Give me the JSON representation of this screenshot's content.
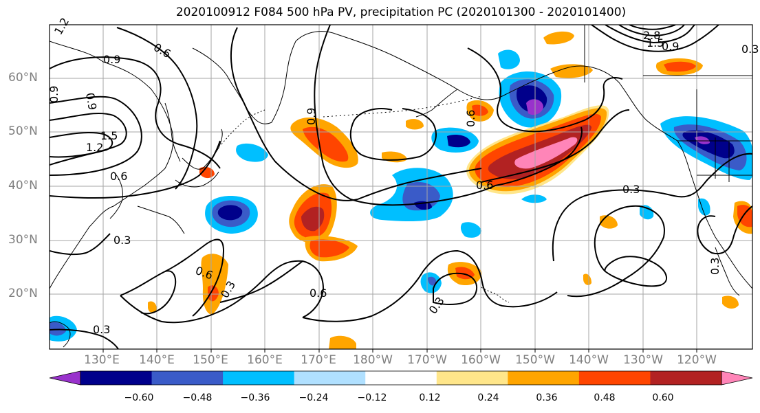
{
  "title": "2020100912 F084 500 hPa PV, precipitation PC (2020101300 - 2020101400)",
  "lat_labels": [
    "60°N",
    "50°N",
    "40°N",
    "30°N",
    "20°N"
  ],
  "lon_labels": [
    "130°E",
    "140°E",
    "150°E",
    "160°E",
    "170°E",
    "180°W",
    "170°W",
    "160°W",
    "150°W",
    "140°W",
    "130°W",
    "120°W"
  ],
  "colorbar": {
    "tick_labels": [
      "−0.60",
      "−0.48",
      "−0.36",
      "−0.24",
      "−0.12",
      "0.12",
      "0.24",
      "0.36",
      "0.48",
      "0.60"
    ],
    "colors": [
      "#9932cc",
      "#00008b",
      "#3a5bc8",
      "#00bfff",
      "#b0e0ff",
      "#ffffff",
      "#ffe68a",
      "#ffa500",
      "#ff4500",
      "#b22222",
      "#ff85b8"
    ]
  },
  "contour_labels": [
    "1.2",
    "0.9",
    "0.6",
    "0.9",
    "0.9",
    "1.5",
    "1.2",
    "0.6",
    "0.3",
    "0.3",
    "0.9",
    "0.6",
    "0.6",
    "0.3",
    "0.6",
    "0.3",
    "0.3",
    "2.8",
    "1.5",
    "0.9",
    "0.3",
    "0.6",
    "0.3"
  ]
}
